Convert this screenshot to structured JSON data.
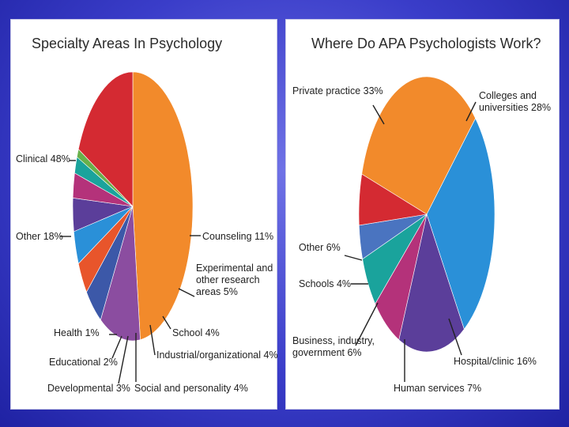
{
  "chart_data": [
    {
      "type": "pie",
      "title": "Specialty Areas In Psychology",
      "slices": [
        {
          "label": "Clinical",
          "value": 48,
          "text": "Clinical 48%",
          "color": "#f28a2b"
        },
        {
          "label": "Counseling",
          "value": 11,
          "text": "Counseling 11%",
          "color": "#8b4da0"
        },
        {
          "label": "Experimental and other research areas",
          "value": 5,
          "text": [
            "Experimental and",
            "other research",
            "areas 5%"
          ],
          "color": "#3c58a8"
        },
        {
          "label": "School",
          "value": 4,
          "text": "School 4%",
          "color": "#e8552b"
        },
        {
          "label": "Industrial/organizational",
          "value": 4,
          "text": "Industrial/organizational 4%",
          "color": "#2a90d8"
        },
        {
          "label": "Social and personality",
          "value": 4,
          "text": "Social and personality 4%",
          "color": "#5b3e9a"
        },
        {
          "label": "Developmental",
          "value": 3,
          "text": "Developmental 3%",
          "color": "#b4327a"
        },
        {
          "label": "Educational",
          "value": 2,
          "text": "Educational 2%",
          "color": "#1aa39c"
        },
        {
          "label": "Health",
          "value": 1,
          "text": "Health 1%",
          "color": "#68b04a"
        },
        {
          "label": "Other",
          "value": 18,
          "text": "Other 18%",
          "color": "#d42a32"
        }
      ]
    },
    {
      "type": "pie",
      "title": "Where Do APA Psychologists Work?",
      "slices": [
        {
          "label": "Private practice",
          "value": 33,
          "text": "Private practice 33%",
          "color": "#f28a2b"
        },
        {
          "label": "Colleges and universities",
          "value": 28,
          "text": [
            "Colleges and",
            "universities 28%"
          ],
          "color": "#2a90d8"
        },
        {
          "label": "Hospital/clinic",
          "value": 16,
          "text": "Hospital/clinic 16%",
          "color": "#5b3e9a"
        },
        {
          "label": "Human services",
          "value": 7,
          "text": "Human services 7%",
          "color": "#b4327a"
        },
        {
          "label": "Business, industry, government",
          "value": 6,
          "text": [
            "Business, industry,",
            "government 6%"
          ],
          "color": "#1aa39c"
        },
        {
          "label": "Schools",
          "value": 4,
          "text": "Schools 4%",
          "color": "#4a74c0"
        },
        {
          "label": "Other",
          "value": 6,
          "text": "Other 6%",
          "color": "#d42a32"
        }
      ]
    }
  ]
}
